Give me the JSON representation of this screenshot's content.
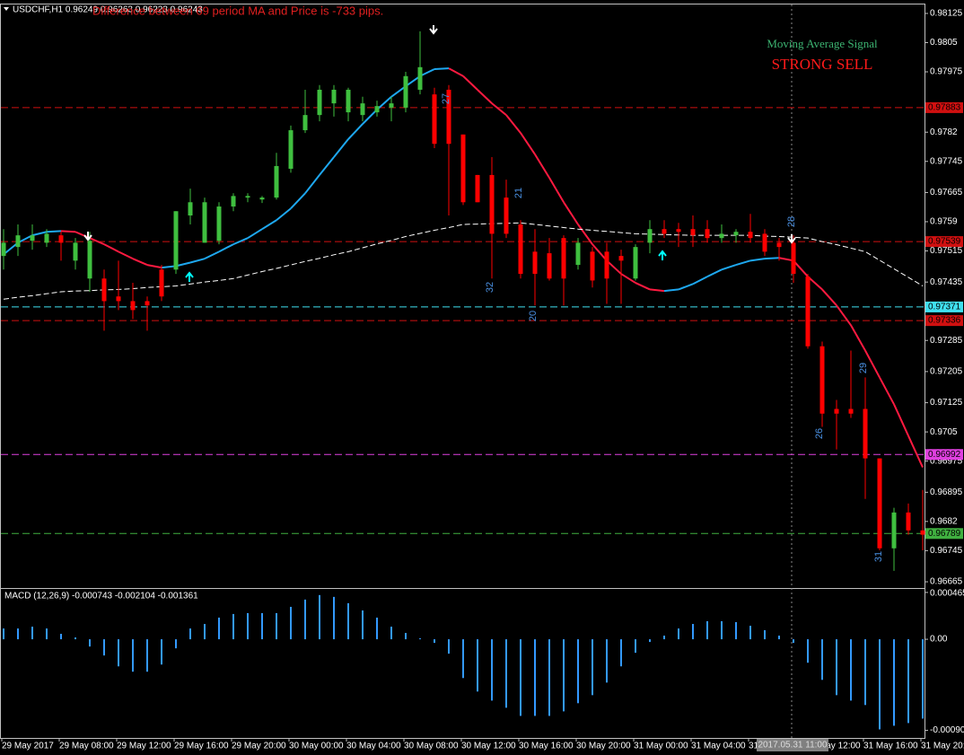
{
  "header": {
    "symbol_info": "USDCHF,H1  0.96249 0.96263 0.96223 0.96243",
    "message": "Difference between 69 period MA and Price is -733 pips.",
    "signal_title": "Moving Average Signal",
    "signal": "STRONG SELL",
    "crosshair_time": "2017.05.31 11:00"
  },
  "chart_data": [
    {
      "type": "candlestick",
      "up_color": "#3fbf3f",
      "down_color": "#ff0000",
      "categories": [
        "29 May 2017",
        null,
        null,
        null,
        "29 May 08:00",
        null,
        null,
        null,
        "29 May 12:00",
        null,
        null,
        null,
        "29 May 16:00",
        null,
        null,
        null,
        "29 May 20:00",
        null,
        null,
        null,
        "30 May 00:00",
        null,
        null,
        null,
        "30 May 04:00",
        null,
        null,
        null,
        "30 May 08:00",
        null,
        null,
        null,
        "30 May 12:00",
        null,
        null,
        null,
        "30 May 16:00",
        null,
        null,
        null,
        "30 May 20:00",
        null,
        null,
        null,
        "31 May 00:00",
        null,
        null,
        null,
        "31 May 04:00",
        null,
        null,
        null,
        "31 May 08:00",
        null,
        null,
        null,
        "31 May 12:00",
        null,
        null,
        null,
        "31 May 16:00",
        null,
        null,
        null,
        "31 May 20:00"
      ],
      "open": [
        0.97502,
        0.97525,
        0.97541,
        0.97536,
        0.97555,
        0.9749,
        0.97444,
        0.97444,
        0.97398,
        0.97386,
        0.97386,
        0.97467,
        0.97467,
        0.97606,
        0.97536,
        0.97541,
        0.97629,
        0.97652,
        0.97647,
        0.97652,
        0.97726,
        0.97825,
        0.97864,
        0.97894,
        0.97871,
        0.97864,
        0.97871,
        0.97883,
        0.97883,
        0.97929,
        0.97917,
        0.97929,
        0.97814,
        0.9771,
        0.9771,
        0.97652,
        0.97583,
        0.97513,
        0.97509,
        0.97548,
        0.97479,
        0.97513,
        0.97513,
        0.97502,
        0.97444,
        0.97536,
        0.97571,
        0.97571,
        0.97571,
        0.97571,
        0.97548,
        0.97555,
        0.97564,
        0.97559,
        0.97536,
        0.97536,
        0.97449,
        0.9727,
        0.97109,
        0.97109,
        0.97109,
        0.96982,
        0.96751,
        0.96843,
        0.96797
      ],
      "high": [
        0.97571,
        0.97583,
        0.97583,
        0.97571,
        0.97564,
        0.97548,
        0.97564,
        0.97467,
        0.9749,
        0.97433,
        0.97398,
        0.97479,
        0.97617,
        0.97675,
        0.97652,
        0.9764,
        0.97663,
        0.97663,
        0.97656,
        0.97767,
        0.97837,
        0.97929,
        0.97941,
        0.97941,
        0.97934,
        0.97911,
        0.97901,
        0.97911,
        0.97975,
        0.98079,
        0.97934,
        0.97941,
        0.97814,
        0.9771,
        0.97756,
        0.97698,
        0.97594,
        0.97571,
        0.97548,
        0.97555,
        0.97548,
        0.97525,
        0.97536,
        0.97518,
        0.97532,
        0.97594,
        0.97594,
        0.97587,
        0.97606,
        0.97594,
        0.97583,
        0.97571,
        0.9761,
        0.97571,
        0.97548,
        0.97555,
        0.97456,
        0.97282,
        0.97132,
        0.97259,
        0.9719,
        0.96982,
        0.96855,
        0.96866,
        0.96901
      ],
      "low": [
        0.97467,
        0.97502,
        0.97518,
        0.97525,
        0.9749,
        0.97467,
        0.9741,
        0.9731,
        0.97363,
        0.9734,
        0.9731,
        0.97386,
        0.97456,
        0.97583,
        0.97536,
        0.97532,
        0.97617,
        0.9764,
        0.97638,
        0.97647,
        0.97716,
        0.97818,
        0.97848,
        0.9786,
        0.97848,
        0.97848,
        0.9786,
        0.97848,
        0.97871,
        0.97917,
        0.97779,
        0.97606,
        0.97633,
        0.9764,
        0.97444,
        0.97548,
        0.97444,
        0.97375,
        0.97439,
        0.97375,
        0.97467,
        0.97421,
        0.97379,
        0.97379,
        0.97439,
        0.97509,
        0.97548,
        0.97525,
        0.97525,
        0.97536,
        0.97536,
        0.97536,
        0.97536,
        0.97502,
        0.9749,
        0.97433,
        0.97264,
        0.97063,
        0.97005,
        0.97086,
        0.96878,
        0.96746,
        0.96693,
        0.96786,
        0.96746
      ],
      "close": [
        0.97536,
        0.97555,
        0.97555,
        0.97559,
        0.97536,
        0.97536,
        0.97541,
        0.97386,
        0.97386,
        0.97363,
        0.97375,
        0.97398,
        0.97617,
        0.9764,
        0.9764,
        0.97629,
        0.97656,
        0.97656,
        0.97652,
        0.97733,
        0.97825,
        0.97864,
        0.97929,
        0.97929,
        0.97929,
        0.97894,
        0.97887,
        0.97894,
        0.97964,
        0.97987,
        0.9779,
        0.9779,
        0.9764,
        0.9764,
        0.97559,
        0.97559,
        0.97456,
        0.97456,
        0.97444,
        0.97444,
        0.97536,
        0.97439,
        0.97444,
        0.9749,
        0.97525,
        0.97571,
        0.97559,
        0.97564,
        0.97555,
        0.97548,
        0.97559,
        0.97564,
        0.97548,
        0.97513,
        0.97525,
        0.97456,
        0.9727,
        0.97097,
        0.97097,
        0.97097,
        0.96982,
        0.96751,
        0.96843,
        0.96797,
        0.96786
      ],
      "series": [
        {
          "color": "#1ea8f0",
          "down_color": "#ff1a40",
          "values": [
            0.97506,
            0.97536,
            0.97555,
            0.97564,
            0.97566,
            0.97564,
            0.97548,
            0.97532,
            0.97513,
            0.97495,
            0.97479,
            0.97472,
            0.97476,
            0.97485,
            0.97495,
            0.97513,
            0.97532,
            0.97548,
            0.97571,
            0.97594,
            0.97624,
            0.97663,
            0.9771,
            0.97756,
            0.97802,
            0.97841,
            0.97878,
            0.97911,
            0.97938,
            0.97964,
            0.97982,
            0.97984,
            0.97964,
            0.97929,
            0.97894,
            0.97864,
            0.97818,
            0.97763,
            0.97703,
            0.9764,
            0.97583,
            0.97532,
            0.9749,
            0.97456,
            0.97433,
            0.97416,
            0.97412,
            0.97416,
            0.9743,
            0.97449,
            0.97467,
            0.97479,
            0.9749,
            0.97495,
            0.97497,
            0.9749,
            0.97449,
            0.97416,
            0.97375,
            0.97324,
            0.97259,
            0.9719,
            0.97121,
            0.9704,
            0.96959
          ]
        },
        {
          "color": "#ffffff",
          "dashed": true,
          "values": [
            0.97391,
            0.97396,
            0.974,
            0.97405,
            0.9741,
            0.97412,
            0.97413,
            0.97415,
            0.97416,
            0.97418,
            0.97421,
            0.97423,
            0.97425,
            0.9743,
            0.97435,
            0.97439,
            0.97444,
            0.97453,
            0.97462,
            0.9747,
            0.97479,
            0.97488,
            0.97496,
            0.97505,
            0.97513,
            0.97523,
            0.97533,
            0.97542,
            0.97552,
            0.9756,
            0.97568,
            0.97575,
            0.97583,
            0.97584,
            0.97585,
            0.97586,
            0.97587,
            0.97583,
            0.97579,
            0.97575,
            0.97571,
            0.97568,
            0.97565,
            0.97562,
            0.97559,
            0.97558,
            0.97557,
            0.97556,
            0.97555,
            0.97555,
            0.97555,
            0.97555,
            0.97555,
            0.97553,
            0.97552,
            0.9755,
            0.97548,
            0.97539,
            0.97531,
            0.97522,
            0.97513,
            0.97491,
            0.97469,
            0.97447,
            0.97425
          ]
        }
      ],
      "levels": [
        {
          "value": 0.97883,
          "color": "#d01010"
        },
        {
          "value": 0.97539,
          "color": "#d01010"
        },
        {
          "value": 0.97371,
          "color": "#40e0f0"
        },
        {
          "value": 0.97336,
          "color": "#d01010"
        },
        {
          "value": 0.96992,
          "color": "#e040e0"
        },
        {
          "value": 0.96789,
          "color": "#40b040"
        }
      ],
      "annotations": [
        27,
        21,
        32,
        20,
        28,
        26,
        29,
        31
      ],
      "ylim": [
        0.96649,
        0.98148
      ],
      "yticks": [
        0.98125,
        0.9805,
        0.97975,
        0.9782,
        0.97745,
        0.97665,
        0.9759,
        0.97515,
        0.97435,
        0.97285,
        0.97205,
        0.97125,
        0.9705,
        0.96975,
        0.96895,
        0.9682,
        0.96745,
        0.96665
      ]
    },
    {
      "type": "bar",
      "title": "MACD (12,26,9) -0.000743 -0.002104 -0.001361",
      "color": "#3399ff",
      "values": [
        0.000107,
        0.000107,
        0.000125,
        0.000107,
        5.4e-05,
        1.8e-05,
        -7.2e-05,
        -0.000161,
        -0.000269,
        -0.000322,
        -0.000322,
        -0.000251,
        -9e-05,
        0.000107,
        0.000152,
        0.000215,
        0.000251,
        0.00026,
        0.00026,
        0.00026,
        0.000322,
        0.000394,
        0.000439,
        0.000421,
        0.000358,
        0.000286,
        0.000215,
        0.000125,
        6.3e-05,
        9e-06,
        -3.6e-05,
        -0.000143,
        -0.000385,
        -0.000519,
        -0.000609,
        -0.00068,
        -0.000761,
        -0.000761,
        -0.000761,
        -0.000716,
        -0.000635,
        -0.000555,
        -0.00043,
        -0.000269,
        -0.000134,
        -2.7e-05,
        3.6e-05,
        0.000107,
        0.000152,
        0.000179,
        0.000179,
        0.00017,
        0.000134,
        9e-05,
        3.6e-05,
        -3.6e-05,
        -0.000233,
        -0.000403,
        -0.000555,
        -0.000609,
        -0.000653,
        -0.000895,
        -0.000859,
        -0.000832,
        -0.000788
      ],
      "ylim": [
        -0.00098,
        0.0005
      ],
      "yticks": [
        0.000465,
        {
          "value": 0,
          "label": "0.00"
        },
        -0.000904
      ]
    }
  ]
}
